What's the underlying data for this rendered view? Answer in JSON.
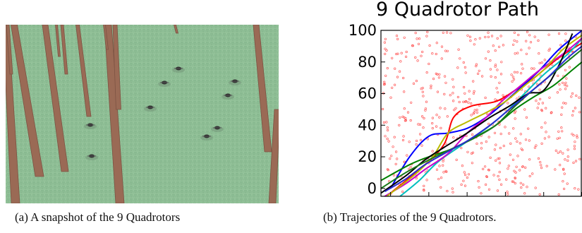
{
  "figure": {
    "panel_a": {
      "caption": "(a) A snapshot of the 9 Quadrotors",
      "colors": {
        "ground": "#8fbf95",
        "pole": "#9a6a55",
        "drone": "#333333"
      }
    },
    "panel_b": {
      "caption": "(b) Trajectories of the 9 Quadrotors."
    }
  },
  "chart_data": {
    "type": "line",
    "title": "9 Quadrotor Path",
    "xlabel": "",
    "ylabel": "",
    "xlim": [
      -5,
      100
    ],
    "ylim": [
      -5,
      100
    ],
    "yticks": [
      0,
      20,
      40,
      60,
      80,
      100
    ],
    "grid": false,
    "obstacles_color": "#ff4444",
    "series": [
      {
        "color": "#ff0000",
        "points": [
          [
            0,
            -3
          ],
          [
            18,
            15
          ],
          [
            28,
            28
          ],
          [
            33,
            45
          ],
          [
            42,
            52
          ],
          [
            55,
            55
          ],
          [
            65,
            62
          ],
          [
            75,
            70
          ],
          [
            85,
            80
          ],
          [
            92,
            86
          ],
          [
            100,
            92
          ]
        ]
      },
      {
        "color": "#0000ff",
        "points": [
          [
            0,
            0
          ],
          [
            10,
            20
          ],
          [
            20,
            33
          ],
          [
            30,
            35
          ],
          [
            40,
            38
          ],
          [
            50,
            45
          ],
          [
            60,
            55
          ],
          [
            70,
            66
          ],
          [
            78,
            75
          ],
          [
            88,
            88
          ],
          [
            100,
            100
          ]
        ]
      },
      {
        "color": "#00bfbf",
        "points": [
          [
            5,
            -5
          ],
          [
            15,
            5
          ],
          [
            25,
            17
          ],
          [
            38,
            28
          ],
          [
            50,
            38
          ],
          [
            60,
            48
          ],
          [
            70,
            60
          ],
          [
            80,
            72
          ],
          [
            88,
            80
          ],
          [
            95,
            88
          ],
          [
            100,
            95
          ]
        ]
      },
      {
        "color": "#008000",
        "points": [
          [
            -5,
            5
          ],
          [
            10,
            15
          ],
          [
            20,
            20
          ],
          [
            32,
            25
          ],
          [
            45,
            33
          ],
          [
            55,
            40
          ],
          [
            65,
            50
          ],
          [
            75,
            58
          ],
          [
            85,
            65
          ],
          [
            95,
            75
          ],
          [
            100,
            80
          ]
        ]
      },
      {
        "color": "#cc00cc",
        "points": [
          [
            -3,
            -5
          ],
          [
            8,
            3
          ],
          [
            18,
            12
          ],
          [
            30,
            22
          ],
          [
            40,
            35
          ],
          [
            50,
            45
          ],
          [
            58,
            55
          ],
          [
            68,
            65
          ],
          [
            78,
            75
          ],
          [
            90,
            85
          ],
          [
            100,
            95
          ]
        ]
      },
      {
        "color": "#bbbb00",
        "points": [
          [
            -2,
            -5
          ],
          [
            12,
            8
          ],
          [
            22,
            20
          ],
          [
            30,
            35
          ],
          [
            40,
            42
          ],
          [
            50,
            48
          ],
          [
            60,
            55
          ],
          [
            70,
            65
          ],
          [
            80,
            75
          ],
          [
            90,
            88
          ],
          [
            100,
            97
          ]
        ]
      },
      {
        "color": "#000000",
        "points": [
          [
            -5,
            -3
          ],
          [
            8,
            8
          ],
          [
            18,
            18
          ],
          [
            28,
            26
          ],
          [
            40,
            35
          ],
          [
            52,
            45
          ],
          [
            62,
            52
          ],
          [
            72,
            60
          ],
          [
            80,
            62
          ],
          [
            88,
            78
          ],
          [
            95,
            98
          ]
        ]
      },
      {
        "color": "#1a7a1a",
        "points": [
          [
            -5,
            0
          ],
          [
            8,
            10
          ],
          [
            20,
            18
          ],
          [
            32,
            25
          ],
          [
            44,
            32
          ],
          [
            55,
            40
          ],
          [
            65,
            52
          ],
          [
            76,
            64
          ],
          [
            86,
            74
          ],
          [
            96,
            84
          ],
          [
            100,
            88
          ]
        ]
      },
      {
        "color": "#2a2ad0",
        "points": [
          [
            -3,
            -2
          ],
          [
            8,
            6
          ],
          [
            18,
            15
          ],
          [
            28,
            22
          ],
          [
            40,
            30
          ],
          [
            52,
            40
          ],
          [
            62,
            50
          ],
          [
            72,
            60
          ],
          [
            82,
            70
          ],
          [
            92,
            82
          ],
          [
            100,
            90
          ]
        ]
      }
    ]
  }
}
